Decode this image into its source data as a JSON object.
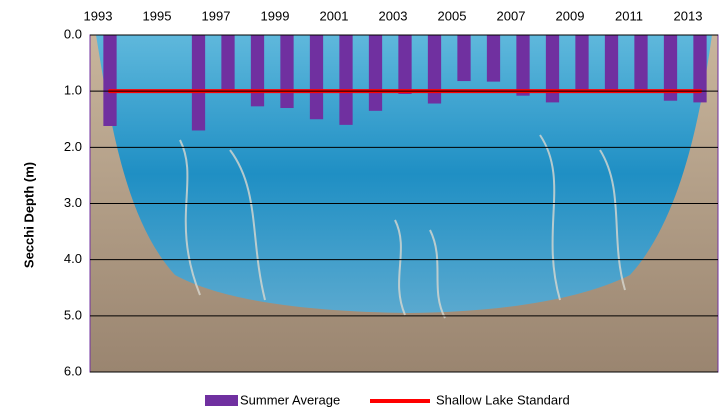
{
  "chart_data": {
    "type": "bar",
    "y_axis_label": "Secchi Depth (m)",
    "y_inverted": true,
    "categories": [
      "1993",
      null,
      "1995",
      null,
      "1997",
      null,
      "1999",
      null,
      "2001",
      null,
      "2003",
      null,
      "2005",
      null,
      "2007",
      null,
      "2009",
      null,
      "2011",
      null,
      "2013"
    ],
    "ylim": [
      0,
      6
    ],
    "yticks": [
      {
        "value": 0,
        "label": "0.0"
      },
      {
        "value": 1,
        "label": "1.0"
      },
      {
        "value": 2,
        "label": "2.0"
      },
      {
        "value": 3,
        "label": "3.0"
      },
      {
        "value": 4,
        "label": "4.0"
      },
      {
        "value": 5,
        "label": "5.0"
      },
      {
        "value": 6,
        "label": "6.0"
      }
    ],
    "grid": true,
    "series": [
      {
        "name": "Summer Average",
        "type": "bar",
        "color": "#7030a0",
        "values": [
          1.62,
          null,
          null,
          1.7,
          1.0,
          1.27,
          1.3,
          1.5,
          1.6,
          1.35,
          1.05,
          1.22,
          0.82,
          0.83,
          1.08,
          1.2,
          1.0,
          1.0,
          1.0,
          1.17,
          1.2
        ]
      },
      {
        "name": "Shallow Lake Standard",
        "type": "line",
        "color": "#ff0000",
        "values": [
          1,
          1,
          1,
          1,
          1,
          1,
          1,
          1,
          1,
          1,
          1,
          1,
          1,
          1,
          1,
          1,
          1,
          1,
          1,
          1,
          1
        ]
      }
    ]
  }
}
